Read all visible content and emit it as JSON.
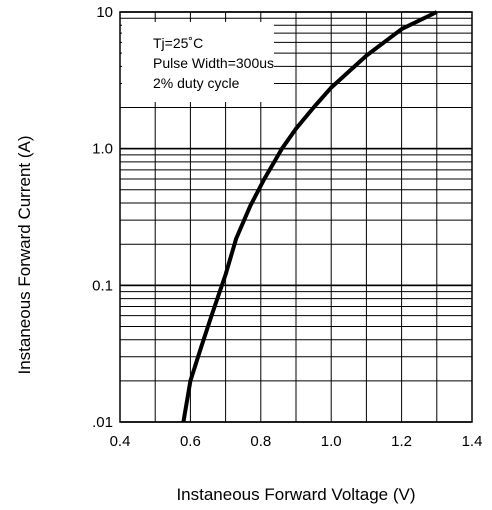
{
  "chart_data": {
    "type": "line",
    "title": "",
    "xlabel": "Instaneous Forward Voltage (V)",
    "ylabel": "Instaneous Forward Current (A)",
    "xlim": [
      0.4,
      1.4
    ],
    "ylim": [
      0.01,
      10
    ],
    "y_scale": "log",
    "grid": true,
    "x_ticks": [
      "0.4",
      "0.6",
      "0.8",
      "1.0",
      "1.2",
      "1.4"
    ],
    "y_ticks": [
      {
        "value": 0.01,
        "label": ".01"
      },
      {
        "value": 0.1,
        "label": "0.1"
      },
      {
        "value": 1,
        "label": "1.0"
      },
      {
        "value": 10,
        "label": "10"
      }
    ],
    "annotations": [
      "Tj=25˚C",
      "Pulse Width=300us",
      "2% duty cycle"
    ],
    "series": [
      {
        "x": [
          0.58,
          0.6,
          0.63,
          0.66,
          0.7,
          0.73,
          0.77,
          0.81,
          0.86,
          0.9,
          0.95,
          1.0,
          1.1,
          1.2,
          1.3
        ],
        "y": [
          0.01,
          0.02,
          0.035,
          0.06,
          0.12,
          0.22,
          0.38,
          0.6,
          1.0,
          1.4,
          2.0,
          2.8,
          4.8,
          7.5,
          10
        ]
      }
    ]
  }
}
